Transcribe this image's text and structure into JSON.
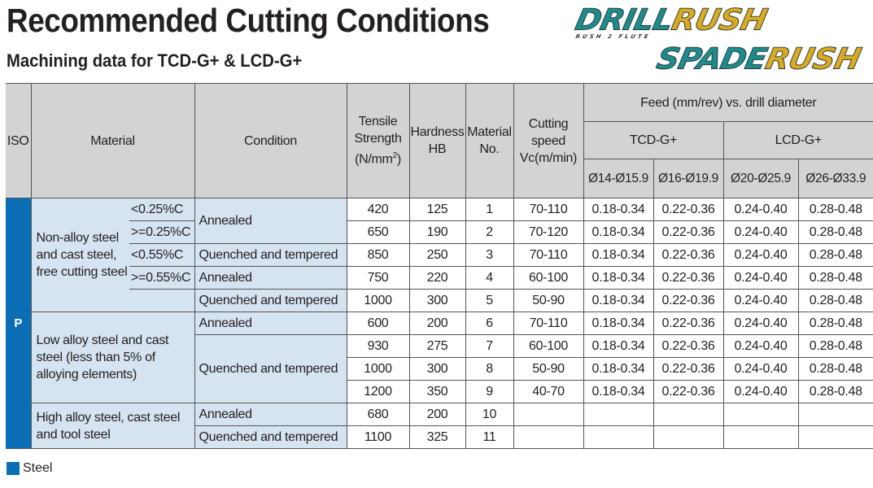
{
  "title": "Recommended Cutting Conditions",
  "subtitle": "Machining data for TCD-G+ & LCD-G+",
  "logos": {
    "drill_a": "DRILL",
    "drill_b": "RUSH",
    "drill_tag": "RUSH 2 FLUTE",
    "spade_a": "SPADE",
    "spade_b": "RUSH"
  },
  "colors": {
    "iso_p": "#0b6eb4",
    "header_bg": "#d1d3d4",
    "material_bg": "#d6e3f1"
  },
  "header": {
    "iso": "ISO",
    "material": "Material",
    "condition": "Condition",
    "tensile_1": "Tensile",
    "tensile_2": "Strength",
    "tensile_3": "(N/mm",
    "tensile_sup": "2",
    "tensile_4": ")",
    "hardness_1": "Hardness",
    "hardness_2": "HB",
    "matno_1": "Material",
    "matno_2": "No.",
    "vc_1": "Cutting",
    "vc_2": "speed",
    "vc_3": "Vc(m/min)",
    "feed": "Feed (mm/rev) vs. drill diameter",
    "tcd": "TCD-G+",
    "lcd": "LCD-G+",
    "diameters": [
      "Ø14-Ø15.9",
      "Ø16-Ø19.9",
      "Ø20-Ø25.9",
      "Ø26-Ø33.9"
    ]
  },
  "iso_group": "P",
  "groups": [
    {
      "material": "Non-alloy steel and cast steel, free cutting steel",
      "has_carbon": true,
      "rows": [
        {
          "carbon": "<0.25%C",
          "condition": "Annealed",
          "tensile": "420",
          "hardness": "125",
          "no": "1",
          "vc": "70-110",
          "feed": [
            "0.18-0.34",
            "0.22-0.36",
            "0.24-0.40",
            "0.28-0.48"
          ]
        },
        {
          "carbon": ">=0.25%C",
          "condition": "Annealed",
          "tensile": "650",
          "hardness": "190",
          "no": "2",
          "vc": "70-120",
          "feed": [
            "0.18-0.34",
            "0.22-0.36",
            "0.24-0.40",
            "0.28-0.48"
          ]
        },
        {
          "carbon": "<0.55%C",
          "condition": "Quenched and tempered",
          "tensile": "850",
          "hardness": "250",
          "no": "3",
          "vc": "70-110",
          "feed": [
            "0.18-0.34",
            "0.22-0.36",
            "0.24-0.40",
            "0.28-0.48"
          ]
        },
        {
          "carbon": ">=0.55%C",
          "condition": "Annealed",
          "tensile": "750",
          "hardness": "220",
          "no": "4",
          "vc": "60-100",
          "feed": [
            "0.18-0.34",
            "0.22-0.36",
            "0.24-0.40",
            "0.28-0.48"
          ]
        },
        {
          "carbon": "",
          "condition": "Quenched and tempered",
          "tensile": "1000",
          "hardness": "300",
          "no": "5",
          "vc": "50-90",
          "feed": [
            "0.18-0.34",
            "0.22-0.36",
            "0.24-0.40",
            "0.28-0.48"
          ]
        }
      ]
    },
    {
      "material": "Low alloy steel and cast steel (less than 5% of alloying elements)",
      "has_carbon": false,
      "rows": [
        {
          "condition": "Annealed",
          "tensile": "600",
          "hardness": "200",
          "no": "6",
          "vc": "70-110",
          "feed": [
            "0.18-0.34",
            "0.22-0.36",
            "0.24-0.40",
            "0.28-0.48"
          ]
        },
        {
          "condition": "Quenched and tempered",
          "tensile": "930",
          "hardness": "275",
          "no": "7",
          "vc": "60-100",
          "feed": [
            "0.18-0.34",
            "0.22-0.36",
            "0.24-0.40",
            "0.28-0.48"
          ]
        },
        {
          "condition": "Quenched and tempered",
          "tensile": "1000",
          "hardness": "300",
          "no": "8",
          "vc": "50-90",
          "feed": [
            "0.18-0.34",
            "0.22-0.36",
            "0.24-0.40",
            "0.28-0.48"
          ]
        },
        {
          "condition": "Quenched and tempered",
          "tensile": "1200",
          "hardness": "350",
          "no": "9",
          "vc": "40-70",
          "feed": [
            "0.18-0.34",
            "0.22-0.36",
            "0.24-0.40",
            "0.28-0.48"
          ]
        }
      ]
    },
    {
      "material": "High alloy steel, cast steel and tool steel",
      "has_carbon": false,
      "rows": [
        {
          "condition": "Annealed",
          "tensile": "680",
          "hardness": "200",
          "no": "10",
          "vc": "",
          "feed": [
            "",
            "",
            "",
            ""
          ]
        },
        {
          "condition": "Quenched and tempered",
          "tensile": "1100",
          "hardness": "325",
          "no": "11",
          "vc": "",
          "feed": [
            "",
            "",
            "",
            ""
          ]
        }
      ]
    }
  ],
  "legend": {
    "label": "Steel"
  }
}
